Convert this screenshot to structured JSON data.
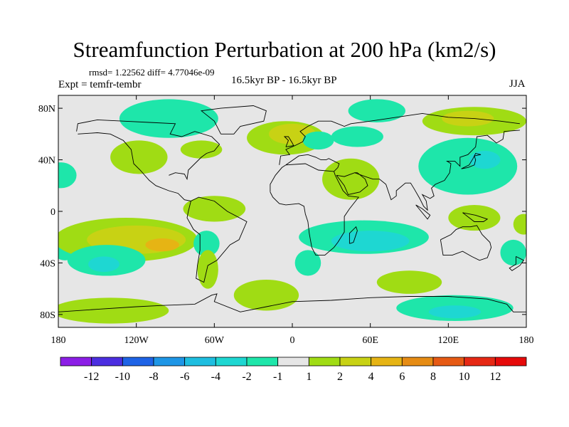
{
  "chart_data": {
    "type": "heatmap",
    "title": "Streamfunction Perturbation at 200 hPa (km2/s)",
    "stats_text": "rmsd= 1.22562 diff= 4.77046e-09",
    "left_label": "Expt = temfr-tembr",
    "center_label": "16.5kyr BP - 16.5kyr BP",
    "right_label": "JJA",
    "x_ticks": [
      "180",
      "120W",
      "60W",
      "0",
      "60E",
      "120E",
      "180"
    ],
    "y_ticks": [
      "80N",
      "40N",
      "0",
      "40S",
      "80S"
    ],
    "xlim": [
      -180,
      180
    ],
    "ylim": [
      -90,
      90
    ],
    "colorbar": {
      "labels": [
        "-12",
        "-10",
        "-8",
        "-6",
        "-4",
        "-2",
        "-1",
        "1",
        "2",
        "4",
        "6",
        "8",
        "10",
        "12"
      ],
      "colors": [
        "#8c1ee6",
        "#4b2ee0",
        "#1e63e6",
        "#1e96e6",
        "#1ebee0",
        "#1ed7d2",
        "#1ee6aa",
        "#e6e6e6",
        "#a0dc14",
        "#c8d214",
        "#e6b414",
        "#e68c14",
        "#e65a14",
        "#e62814",
        "#e60a0a"
      ]
    },
    "regions": [
      {
        "lon": -178,
        "lat": 28,
        "rx": 12,
        "ry": 10,
        "level": "-1"
      },
      {
        "lon": -175,
        "lat": -28,
        "rx": 10,
        "ry": 10,
        "level": "-1"
      },
      {
        "lon": -118,
        "lat": 42,
        "rx": 22,
        "ry": 13,
        "level": "1"
      },
      {
        "lon": -95,
        "lat": 72,
        "rx": 38,
        "ry": 15,
        "level": "-1"
      },
      {
        "lon": -70,
        "lat": 48,
        "rx": 16,
        "ry": 7,
        "level": "1"
      },
      {
        "lon": -60,
        "lat": 2,
        "rx": 24,
        "ry": 10,
        "level": "1"
      },
      {
        "lon": -128,
        "lat": -22,
        "rx": 55,
        "ry": 17,
        "level": "1"
      },
      {
        "lon": -120,
        "lat": -22,
        "rx": 38,
        "ry": 11,
        "level": "2"
      },
      {
        "lon": -100,
        "lat": -26,
        "rx": 13,
        "ry": 5,
        "level": "4"
      },
      {
        "lon": -143,
        "lat": -38,
        "rx": 30,
        "ry": 12,
        "level": "-1"
      },
      {
        "lon": -145,
        "lat": -41,
        "rx": 12,
        "ry": 6,
        "level": "-2"
      },
      {
        "lon": -66,
        "lat": -25,
        "rx": 10,
        "ry": 10,
        "level": "-1"
      },
      {
        "lon": -65,
        "lat": -45,
        "rx": 8,
        "ry": 15,
        "level": "1"
      },
      {
        "lon": -140,
        "lat": -77,
        "rx": 45,
        "ry": 10,
        "level": "1"
      },
      {
        "lon": -20,
        "lat": -65,
        "rx": 25,
        "ry": 12,
        "level": "1"
      },
      {
        "lon": -5,
        "lat": 57,
        "rx": 30,
        "ry": 13,
        "level": "1"
      },
      {
        "lon": 0,
        "lat": 60,
        "rx": 18,
        "ry": 8,
        "level": "2"
      },
      {
        "lon": 20,
        "lat": 55,
        "rx": 12,
        "ry": 7,
        "level": "-1"
      },
      {
        "lon": 45,
        "lat": 25,
        "rx": 22,
        "ry": 16,
        "level": "1"
      },
      {
        "lon": 50,
        "lat": 58,
        "rx": 20,
        "ry": 8,
        "level": "-1"
      },
      {
        "lon": 65,
        "lat": 78,
        "rx": 22,
        "ry": 9,
        "level": "-1"
      },
      {
        "lon": 55,
        "lat": -20,
        "rx": 50,
        "ry": 13,
        "level": "-1"
      },
      {
        "lon": 60,
        "lat": -23,
        "rx": 30,
        "ry": 8,
        "level": "-2"
      },
      {
        "lon": 12,
        "lat": -40,
        "rx": 10,
        "ry": 10,
        "level": "-1"
      },
      {
        "lon": 90,
        "lat": -55,
        "rx": 25,
        "ry": 9,
        "level": "1"
      },
      {
        "lon": 125,
        "lat": -75,
        "rx": 45,
        "ry": 10,
        "level": "-1"
      },
      {
        "lon": 125,
        "lat": -78,
        "rx": 20,
        "ry": 5,
        "level": "-2"
      },
      {
        "lon": 140,
        "lat": 70,
        "rx": 40,
        "ry": 11,
        "level": "1"
      },
      {
        "lon": 135,
        "lat": 72,
        "rx": 20,
        "ry": 6,
        "level": "2"
      },
      {
        "lon": 135,
        "lat": 35,
        "rx": 38,
        "ry": 22,
        "level": "-1"
      },
      {
        "lon": 148,
        "lat": 40,
        "rx": 12,
        "ry": 7,
        "level": "-2"
      },
      {
        "lon": 140,
        "lat": -5,
        "rx": 20,
        "ry": 10,
        "level": "1"
      },
      {
        "lon": 170,
        "lat": -32,
        "rx": 10,
        "ry": 10,
        "level": "-1"
      },
      {
        "lon": 178,
        "lat": -10,
        "rx": 8,
        "ry": 8,
        "level": "1"
      }
    ]
  }
}
